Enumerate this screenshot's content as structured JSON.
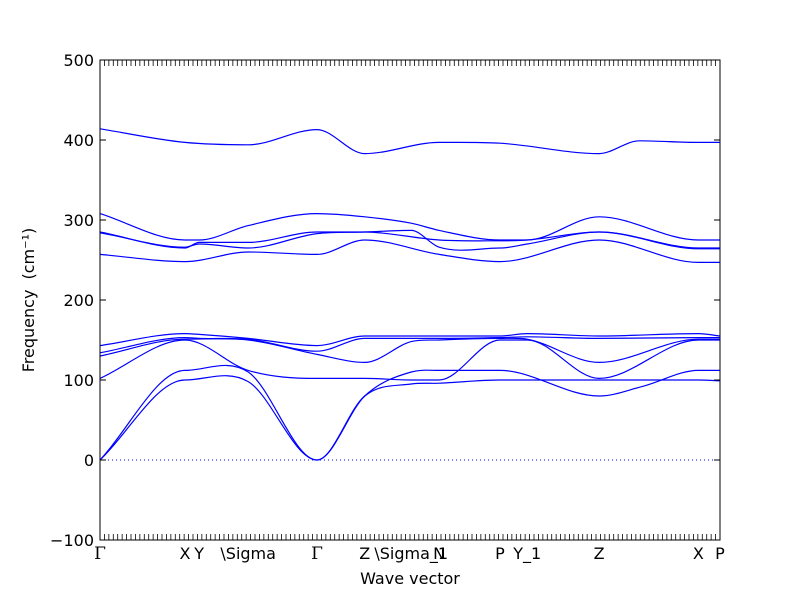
{
  "chart_data": {
    "type": "line",
    "title": "",
    "xlabel": "Wave vector",
    "ylabel": "Frequency",
    "ylabel_unit": "(cm⁻¹)",
    "ylim": [
      -100,
      500
    ],
    "y_ticks": [
      -100,
      0,
      100,
      200,
      300,
      400,
      500
    ],
    "x_range": [
      0,
      1
    ],
    "line_color": "#0000ff",
    "zero_line_color": "#0000ff",
    "high_symmetry_points": [
      {
        "label": "Γ",
        "x": 0.0
      },
      {
        "label": "X",
        "x": 0.137
      },
      {
        "label": "Y",
        "x": 0.16
      },
      {
        "label": "\\Sigma",
        "x": 0.239
      },
      {
        "label": "Γ",
        "x": 0.35
      },
      {
        "label": "Z",
        "x": 0.427
      },
      {
        "label": "\\Sigma_1",
        "x": 0.502
      },
      {
        "label": "N",
        "x": 0.547
      },
      {
        "label": "P",
        "x": 0.645
      },
      {
        "label": "Y_1",
        "x": 0.689
      },
      {
        "label": "Z",
        "x": 0.805
      },
      {
        "label": "X",
        "x": 0.965
      },
      {
        "label": "P",
        "x": 1.0
      }
    ],
    "series": [
      {
        "x": [
          0.0,
          0.137,
          0.239,
          0.35,
          0.427,
          0.547,
          0.645,
          0.805,
          0.87,
          0.965,
          1.0
        ],
        "y": [
          414,
          397,
          394,
          413,
          383,
          397,
          396,
          383,
          399,
          397,
          397
        ]
      },
      {
        "x": [
          0.0,
          0.137,
          0.16,
          0.239,
          0.35,
          0.427,
          0.502,
          0.547,
          0.645,
          0.689,
          0.805,
          0.965,
          1.0
        ],
        "y": [
          308,
          275,
          275,
          293,
          308,
          304,
          296,
          287,
          275,
          275,
          304,
          275,
          275
        ]
      },
      {
        "x": [
          0.0,
          0.137,
          0.16,
          0.239,
          0.35,
          0.427,
          0.547,
          0.645,
          0.689,
          0.805,
          0.965,
          1.0
        ],
        "y": [
          285,
          265,
          272,
          272,
          285,
          285,
          275,
          274,
          275,
          285,
          265,
          265
        ]
      },
      {
        "x": [
          0.0,
          0.137,
          0.16,
          0.239,
          0.35,
          0.427,
          0.502,
          0.547,
          0.645,
          0.689,
          0.805,
          0.965,
          1.0
        ],
        "y": [
          284,
          266,
          270,
          265,
          283,
          285,
          287,
          266,
          265,
          270,
          285,
          264,
          264
        ]
      },
      {
        "x": [
          0.0,
          0.137,
          0.239,
          0.35,
          0.427,
          0.547,
          0.645,
          0.805,
          0.965,
          1.0
        ],
        "y": [
          257,
          248,
          260,
          257,
          275,
          257,
          248,
          275,
          247,
          247
        ]
      },
      {
        "x": [
          0.0,
          0.137,
          0.16,
          0.239,
          0.35,
          0.427,
          0.547,
          0.645,
          0.689,
          0.805,
          0.965,
          1.0
        ],
        "y": [
          143,
          158,
          157,
          152,
          143,
          155,
          155,
          155,
          158,
          155,
          158,
          155
        ]
      },
      {
        "x": [
          0.0,
          0.137,
          0.16,
          0.239,
          0.35,
          0.427,
          0.547,
          0.645,
          0.689,
          0.805,
          0.965,
          1.0
        ],
        "y": [
          134,
          153,
          152,
          151,
          136,
          152,
          152,
          153,
          154,
          152,
          153,
          153
        ]
      },
      {
        "x": [
          0.0,
          0.137,
          0.239,
          0.35,
          0.427,
          0.502,
          0.547,
          0.645,
          0.689,
          0.805,
          0.965,
          1.0
        ],
        "y": [
          130,
          151,
          150,
          132,
          122,
          148,
          150,
          152,
          151,
          122,
          151,
          151
        ]
      },
      {
        "x": [
          0.0,
          0.137,
          0.239,
          0.35,
          0.427,
          0.502,
          0.547,
          0.645,
          0.689,
          0.805,
          0.965,
          1.0
        ],
        "y": [
          102,
          150,
          112,
          102,
          102,
          100,
          100,
          150,
          150,
          102,
          150,
          150
        ]
      },
      {
        "x": [
          0.0,
          0.137,
          0.239,
          0.35,
          0.427,
          0.502,
          0.547,
          0.645,
          0.805,
          0.875,
          0.965,
          1.0
        ],
        "y": [
          0,
          112,
          110,
          0,
          80,
          110,
          112,
          112,
          80,
          92,
          112,
          112
        ]
      },
      {
        "x": [
          0.0,
          0.137,
          0.239,
          0.35,
          0.427,
          0.502,
          0.547,
          0.645,
          0.805,
          0.965,
          1.0
        ],
        "y": [
          0,
          100,
          98,
          0,
          80,
          95,
          96,
          100,
          100,
          100,
          99
        ]
      }
    ]
  }
}
